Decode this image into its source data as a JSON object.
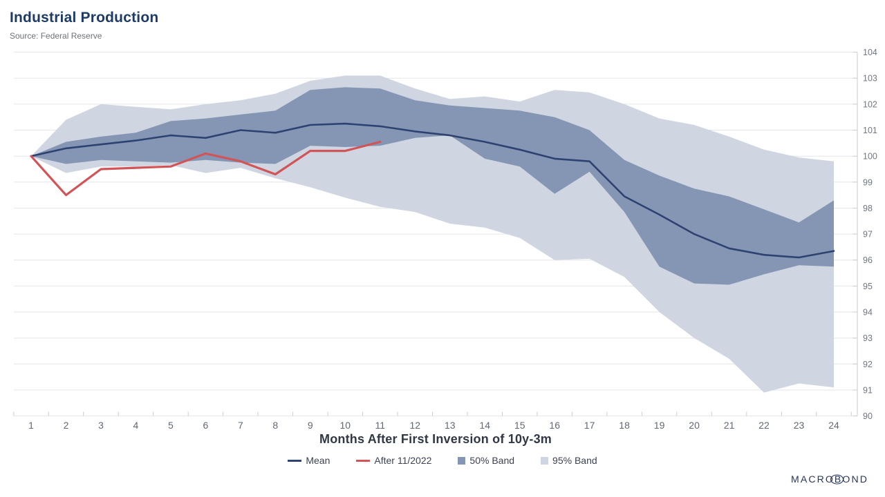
{
  "header": {
    "title": "Industrial Production",
    "source": "Source: Federal Reserve"
  },
  "branding": {
    "logo_text": "MACROBOND"
  },
  "chart_data": {
    "type": "line",
    "title": "Industrial Production",
    "subtitle": "Source: Federal Reserve",
    "xlabel": "Months After First Inversion of 10y-3m",
    "ylabel": "",
    "x": [
      1,
      2,
      3,
      4,
      5,
      6,
      7,
      8,
      9,
      10,
      11,
      12,
      13,
      14,
      15,
      16,
      17,
      18,
      19,
      20,
      21,
      22,
      23,
      24
    ],
    "ylim": [
      90,
      104
    ],
    "yticks": [
      90,
      91,
      92,
      93,
      94,
      95,
      96,
      97,
      98,
      99,
      100,
      101,
      102,
      103,
      104
    ],
    "grid": true,
    "legend_position": "bottom",
    "axis_colors": {
      "grid": "#e4e6ea",
      "axis": "#c9cdd4",
      "tick_label": "#6f7783"
    },
    "series": [
      {
        "name": "Mean",
        "kind": "line",
        "color": "#2d4270",
        "values": [
          100.0,
          100.3,
          100.45,
          100.6,
          100.8,
          100.7,
          101.0,
          100.9,
          101.2,
          101.25,
          101.15,
          100.95,
          100.8,
          100.55,
          100.25,
          99.9,
          99.8,
          98.45,
          97.75,
          97.0,
          96.45,
          96.2,
          96.1,
          96.35
        ]
      },
      {
        "name": "After 11/2022",
        "kind": "line",
        "color": "#d15458",
        "values": [
          100.0,
          98.5,
          99.5,
          99.55,
          99.6,
          100.1,
          99.8,
          99.3,
          100.2,
          100.2,
          100.55
        ]
      },
      {
        "name": "50% Band",
        "kind": "band",
        "color": "#8496b4",
        "upper": [
          100.0,
          100.55,
          100.75,
          100.9,
          101.35,
          101.45,
          101.6,
          101.75,
          102.55,
          102.65,
          102.6,
          102.15,
          101.95,
          101.85,
          101.75,
          101.5,
          101.0,
          99.85,
          99.25,
          98.75,
          98.45,
          97.95,
          97.45,
          98.3
        ],
        "lower": [
          100.0,
          99.7,
          99.85,
          99.8,
          99.75,
          99.85,
          99.75,
          99.7,
          100.4,
          100.35,
          100.4,
          100.7,
          100.8,
          99.9,
          99.6,
          98.55,
          99.4,
          97.85,
          95.75,
          95.1,
          95.05,
          95.45,
          95.8,
          95.75
        ]
      },
      {
        "name": "95% Band",
        "kind": "band",
        "color": "#cfd6e1",
        "upper": [
          100.0,
          101.4,
          102.0,
          101.9,
          101.8,
          102.0,
          102.15,
          102.4,
          102.9,
          103.1,
          103.1,
          102.6,
          102.2,
          102.3,
          102.1,
          102.55,
          102.45,
          102.0,
          101.45,
          101.2,
          100.75,
          100.25,
          99.95,
          99.8
        ],
        "lower": [
          100.0,
          99.35,
          99.6,
          99.6,
          99.65,
          99.35,
          99.55,
          99.15,
          98.8,
          98.4,
          98.05,
          97.85,
          97.4,
          97.25,
          96.85,
          96.0,
          96.05,
          95.35,
          94.0,
          93.0,
          92.2,
          90.9,
          91.25,
          91.1
        ]
      }
    ]
  }
}
